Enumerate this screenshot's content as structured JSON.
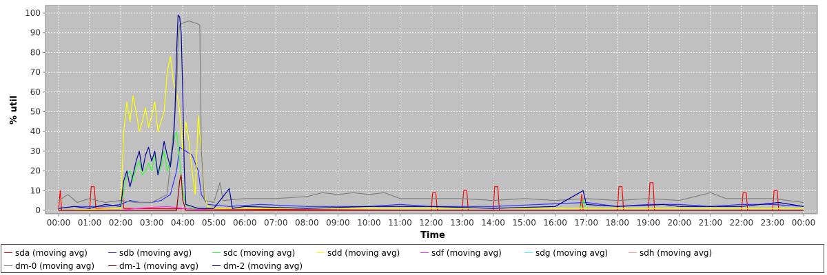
{
  "chart_data": {
    "type": "line",
    "title": "",
    "xlabel": "Time",
    "ylabel": "% util",
    "ylim": [
      0,
      100
    ],
    "y_ticks": [
      0,
      10,
      20,
      30,
      40,
      50,
      60,
      70,
      80,
      90,
      100
    ],
    "x_ticks": [
      "00:00",
      "01:00",
      "02:00",
      "03:00",
      "04:00",
      "05:00",
      "06:00",
      "07:00",
      "08:00",
      "09:00",
      "10:00",
      "11:00",
      "12:00",
      "13:00",
      "14:00",
      "15:00",
      "16:00",
      "17:00",
      "18:00",
      "19:00",
      "20:00",
      "21:00",
      "22:00",
      "23:00",
      "00:00"
    ],
    "grid": true,
    "legend_placement": "bottom",
    "background_color": "#c0c0c0",
    "series": [
      {
        "name": "sda (moving avg)",
        "color": "#ff0000",
        "points": [
          [
            0.0,
            0
          ],
          [
            0.05,
            10
          ],
          [
            0.1,
            0
          ],
          [
            1.0,
            0
          ],
          [
            1.05,
            12
          ],
          [
            1.15,
            12
          ],
          [
            1.2,
            1
          ],
          [
            2.0,
            1
          ],
          [
            2.05,
            10
          ],
          [
            2.1,
            1
          ],
          [
            12.0,
            0
          ],
          [
            12.05,
            9
          ],
          [
            12.15,
            9
          ],
          [
            12.2,
            0
          ],
          [
            13.0,
            0
          ],
          [
            13.05,
            10
          ],
          [
            13.15,
            10
          ],
          [
            13.2,
            0
          ],
          [
            14.0,
            0
          ],
          [
            14.05,
            12
          ],
          [
            14.15,
            12
          ],
          [
            14.2,
            0
          ],
          [
            16.8,
            0
          ],
          [
            16.85,
            8
          ],
          [
            16.9,
            0
          ],
          [
            18.0,
            0
          ],
          [
            18.05,
            12
          ],
          [
            18.15,
            12
          ],
          [
            18.2,
            0
          ],
          [
            19.0,
            0
          ],
          [
            19.05,
            14
          ],
          [
            19.15,
            14
          ],
          [
            19.2,
            0
          ],
          [
            22.0,
            0
          ],
          [
            22.05,
            9
          ],
          [
            22.15,
            9
          ],
          [
            22.2,
            0
          ],
          [
            23.0,
            0
          ],
          [
            23.05,
            10
          ],
          [
            23.15,
            10
          ],
          [
            23.2,
            0
          ],
          [
            24.0,
            0
          ]
        ]
      },
      {
        "name": "sdb (moving avg)",
        "color": "#3333ff",
        "points": [
          [
            0.0,
            1
          ],
          [
            0.5,
            2
          ],
          [
            1.0,
            2
          ],
          [
            1.5,
            2
          ],
          [
            2.0,
            3
          ],
          [
            2.3,
            5
          ],
          [
            2.6,
            4
          ],
          [
            3.0,
            4
          ],
          [
            3.3,
            5
          ],
          [
            3.6,
            8
          ],
          [
            3.8,
            20
          ],
          [
            3.9,
            32
          ],
          [
            4.1,
            30
          ],
          [
            4.3,
            28
          ],
          [
            4.5,
            20
          ],
          [
            4.6,
            8
          ],
          [
            4.8,
            3
          ],
          [
            5.5,
            2
          ],
          [
            6.5,
            3
          ],
          [
            8.0,
            2
          ],
          [
            10.0,
            2
          ],
          [
            11.0,
            3
          ],
          [
            12.0,
            2
          ],
          [
            14.0,
            2
          ],
          [
            15.5,
            3
          ],
          [
            17.0,
            4
          ],
          [
            18.0,
            2
          ],
          [
            19.0,
            3
          ],
          [
            20.0,
            3
          ],
          [
            21.0,
            2
          ],
          [
            22.0,
            3
          ],
          [
            23.0,
            3
          ],
          [
            24.0,
            2
          ]
        ]
      },
      {
        "name": "sdc (moving avg)",
        "color": "#33ff33",
        "points": [
          [
            0.0,
            0
          ],
          [
            2.0,
            1
          ],
          [
            2.1,
            10
          ],
          [
            2.2,
            18
          ],
          [
            2.3,
            20
          ],
          [
            2.4,
            15
          ],
          [
            2.5,
            22
          ],
          [
            2.6,
            25
          ],
          [
            2.7,
            18
          ],
          [
            2.8,
            20
          ],
          [
            2.9,
            24
          ],
          [
            3.0,
            20
          ],
          [
            3.1,
            28
          ],
          [
            3.2,
            18
          ],
          [
            3.3,
            22
          ],
          [
            3.4,
            30
          ],
          [
            3.5,
            20
          ],
          [
            3.6,
            25
          ],
          [
            3.7,
            35
          ],
          [
            3.8,
            40
          ],
          [
            3.9,
            25
          ],
          [
            4.0,
            10
          ],
          [
            4.1,
            3
          ],
          [
            4.3,
            1
          ],
          [
            5.0,
            1
          ],
          [
            6.0,
            1
          ],
          [
            10.0,
            1
          ],
          [
            12.0,
            1
          ],
          [
            16.8,
            1
          ],
          [
            16.9,
            5
          ],
          [
            17.0,
            1
          ],
          [
            20.0,
            1
          ],
          [
            24.0,
            1
          ]
        ]
      },
      {
        "name": "sdd (moving avg)",
        "color": "#ffff00",
        "points": [
          [
            0.0,
            0
          ],
          [
            2.0,
            1
          ],
          [
            2.1,
            40
          ],
          [
            2.2,
            55
          ],
          [
            2.3,
            45
          ],
          [
            2.4,
            58
          ],
          [
            2.5,
            50
          ],
          [
            2.6,
            40
          ],
          [
            2.7,
            45
          ],
          [
            2.8,
            52
          ],
          [
            2.9,
            42
          ],
          [
            3.0,
            48
          ],
          [
            3.1,
            55
          ],
          [
            3.2,
            40
          ],
          [
            3.3,
            45
          ],
          [
            3.4,
            50
          ],
          [
            3.5,
            70
          ],
          [
            3.6,
            78
          ],
          [
            3.7,
            65
          ],
          [
            3.8,
            60
          ],
          [
            3.9,
            50
          ],
          [
            4.0,
            30
          ],
          [
            4.1,
            45
          ],
          [
            4.2,
            35
          ],
          [
            4.3,
            20
          ],
          [
            4.4,
            8
          ],
          [
            4.5,
            48
          ],
          [
            4.6,
            30
          ],
          [
            4.7,
            8
          ],
          [
            4.8,
            2
          ],
          [
            5.0,
            1
          ],
          [
            10.0,
            1
          ],
          [
            24.0,
            1
          ]
        ]
      },
      {
        "name": "sdf (moving avg)",
        "color": "#ff33ff",
        "points": [
          [
            0.0,
            0
          ],
          [
            2.0,
            0
          ],
          [
            2.5,
            1
          ],
          [
            3.5,
            2
          ],
          [
            4.0,
            1
          ],
          [
            5.0,
            0
          ],
          [
            24.0,
            0
          ]
        ]
      },
      {
        "name": "sdg (moving avg)",
        "color": "#33ffff",
        "points": [
          [
            0.0,
            0
          ],
          [
            24.0,
            0
          ]
        ]
      },
      {
        "name": "sdh (moving avg)",
        "color": "#ff9999",
        "points": [
          [
            0.0,
            0
          ],
          [
            24.0,
            0
          ]
        ]
      },
      {
        "name": "dm-0 (moving avg)",
        "color": "#808080",
        "points": [
          [
            0.0,
            5
          ],
          [
            0.3,
            8
          ],
          [
            0.6,
            4
          ],
          [
            1.0,
            6
          ],
          [
            1.5,
            4
          ],
          [
            2.0,
            5
          ],
          [
            2.5,
            4
          ],
          [
            3.0,
            4
          ],
          [
            3.5,
            8
          ],
          [
            3.7,
            40
          ],
          [
            3.8,
            60
          ],
          [
            3.85,
            85
          ],
          [
            3.9,
            94
          ],
          [
            4.0,
            95
          ],
          [
            4.2,
            96
          ],
          [
            4.4,
            95
          ],
          [
            4.55,
            94
          ],
          [
            4.6,
            30
          ],
          [
            4.7,
            5
          ],
          [
            5.0,
            4
          ],
          [
            5.2,
            14
          ],
          [
            5.3,
            5
          ],
          [
            6.0,
            6
          ],
          [
            7.0,
            6
          ],
          [
            8.0,
            7
          ],
          [
            8.5,
            9
          ],
          [
            9.0,
            8
          ],
          [
            9.5,
            9
          ],
          [
            10.0,
            8
          ],
          [
            10.5,
            9
          ],
          [
            11.0,
            6
          ],
          [
            12.0,
            6
          ],
          [
            13.0,
            6
          ],
          [
            14.0,
            5
          ],
          [
            15.0,
            6
          ],
          [
            16.0,
            5
          ],
          [
            17.0,
            6
          ],
          [
            18.0,
            5
          ],
          [
            19.0,
            6
          ],
          [
            20.0,
            5
          ],
          [
            21.0,
            9
          ],
          [
            21.5,
            6
          ],
          [
            22.0,
            6
          ],
          [
            23.0,
            6
          ],
          [
            23.5,
            5
          ],
          [
            24.0,
            4
          ]
        ]
      },
      {
        "name": "dm-1 (moving avg)",
        "color": "#990000",
        "points": [
          [
            0.0,
            0
          ],
          [
            3.8,
            0
          ],
          [
            3.9,
            15
          ],
          [
            3.95,
            18
          ],
          [
            4.0,
            5
          ],
          [
            4.1,
            0
          ],
          [
            24.0,
            0
          ]
        ]
      },
      {
        "name": "dm-2 (moving avg)",
        "color": "#000099",
        "points": [
          [
            0.0,
            1
          ],
          [
            0.5,
            2
          ],
          [
            1.0,
            1
          ],
          [
            1.5,
            3
          ],
          [
            2.0,
            2
          ],
          [
            2.1,
            15
          ],
          [
            2.2,
            20
          ],
          [
            2.3,
            12
          ],
          [
            2.4,
            18
          ],
          [
            2.5,
            25
          ],
          [
            2.6,
            30
          ],
          [
            2.7,
            20
          ],
          [
            2.8,
            28
          ],
          [
            2.9,
            32
          ],
          [
            3.0,
            25
          ],
          [
            3.1,
            30
          ],
          [
            3.2,
            18
          ],
          [
            3.3,
            25
          ],
          [
            3.4,
            35
          ],
          [
            3.5,
            28
          ],
          [
            3.6,
            22
          ],
          [
            3.7,
            35
          ],
          [
            3.75,
            50
          ],
          [
            3.8,
            80
          ],
          [
            3.85,
            99
          ],
          [
            3.9,
            98
          ],
          [
            3.95,
            90
          ],
          [
            4.0,
            60
          ],
          [
            4.05,
            20
          ],
          [
            4.1,
            3
          ],
          [
            4.5,
            1
          ],
          [
            5.0,
            1
          ],
          [
            5.5,
            11
          ],
          [
            5.6,
            1
          ],
          [
            6.0,
            2
          ],
          [
            8.0,
            1
          ],
          [
            10.0,
            2
          ],
          [
            12.0,
            2
          ],
          [
            14.0,
            1
          ],
          [
            16.0,
            2
          ],
          [
            16.9,
            10
          ],
          [
            17.0,
            3
          ],
          [
            18.0,
            2
          ],
          [
            19.5,
            3
          ],
          [
            20.0,
            2
          ],
          [
            22.0,
            2
          ],
          [
            23.2,
            4
          ],
          [
            24.0,
            2
          ]
        ]
      }
    ]
  }
}
